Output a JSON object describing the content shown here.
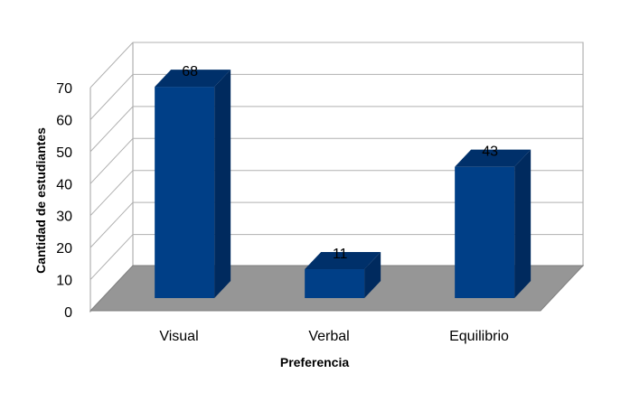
{
  "chart_data": {
    "type": "bar",
    "title": "",
    "categories": [
      "Visual",
      "Verbal",
      "Equilibrio"
    ],
    "series": [
      {
        "values": [
          68,
          11,
          43
        ]
      }
    ],
    "xlabel": "Preferencia",
    "ylabel": "Cantidad de estudiantes",
    "ylim": [
      0,
      70
    ],
    "yticks": [
      0,
      10,
      20,
      30,
      40,
      50,
      60,
      70
    ],
    "grid": true,
    "legend": "none",
    "style": "3d-column",
    "colors": {
      "bar_front": "#003f87",
      "bar_side": "#002a5e",
      "bar_top": "#00306a",
      "floor": "#969696",
      "grid": "#b0b0b0"
    }
  }
}
